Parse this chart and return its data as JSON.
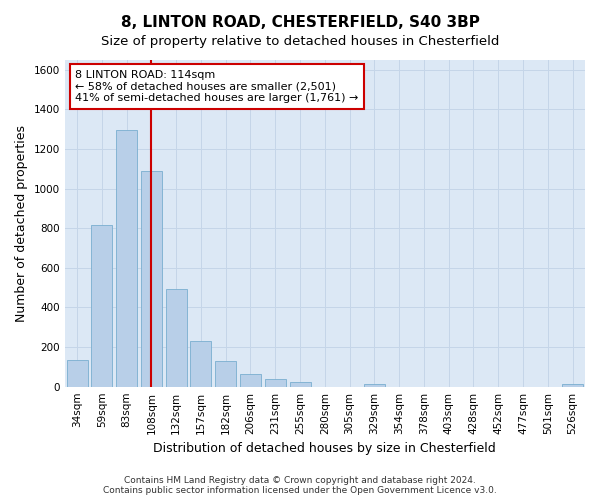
{
  "title1": "8, LINTON ROAD, CHESTERFIELD, S40 3BP",
  "title2": "Size of property relative to detached houses in Chesterfield",
  "xlabel": "Distribution of detached houses by size in Chesterfield",
  "ylabel": "Number of detached properties",
  "categories": [
    "34sqm",
    "59sqm",
    "83sqm",
    "108sqm",
    "132sqm",
    "157sqm",
    "182sqm",
    "206sqm",
    "231sqm",
    "255sqm",
    "280sqm",
    "305sqm",
    "329sqm",
    "354sqm",
    "378sqm",
    "403sqm",
    "428sqm",
    "452sqm",
    "477sqm",
    "501sqm",
    "526sqm"
  ],
  "values": [
    135,
    815,
    1295,
    1090,
    495,
    230,
    130,
    65,
    37,
    25,
    0,
    0,
    15,
    0,
    0,
    0,
    0,
    0,
    0,
    0,
    15
  ],
  "bar_color": "#b8cfe8",
  "bar_edgecolor": "#7aaed0",
  "vline_x_index": 3,
  "vline_color": "#cc0000",
  "annotation_text": "8 LINTON ROAD: 114sqm\n← 58% of detached houses are smaller (2,501)\n41% of semi-detached houses are larger (1,761) →",
  "annotation_box_facecolor": "#ffffff",
  "annotation_box_edgecolor": "#cc0000",
  "ylim": [
    0,
    1650
  ],
  "yticks": [
    0,
    200,
    400,
    600,
    800,
    1000,
    1200,
    1400,
    1600
  ],
  "grid_color": "#c5d5e8",
  "bg_color": "#dce8f5",
  "fig_facecolor": "#ffffff",
  "footnote": "Contains HM Land Registry data © Crown copyright and database right 2024.\nContains public sector information licensed under the Open Government Licence v3.0.",
  "title1_fontsize": 11,
  "title2_fontsize": 9.5,
  "xlabel_fontsize": 9,
  "ylabel_fontsize": 9,
  "tick_fontsize": 7.5,
  "annotation_fontsize": 8,
  "footnote_fontsize": 6.5
}
